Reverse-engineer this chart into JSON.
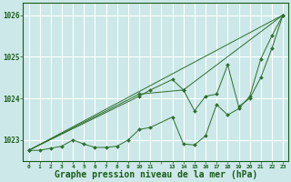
{
  "background_color": "#cce8e8",
  "grid_color": "#ffffff",
  "line_color": "#2d6e2d",
  "marker_color": "#2d6e2d",
  "xlabel": "Graphe pression niveau de la mer (hPa)",
  "xlabel_fontsize": 7,
  "ylim": [
    1022.5,
    1026.3
  ],
  "xlim": [
    -0.5,
    23.5
  ],
  "yticks": [
    1023,
    1024,
    1025,
    1026
  ],
  "xtick_labels": [
    "0",
    "1",
    "2",
    "3",
    "4",
    "5",
    "6",
    "7",
    "8",
    "9",
    "10",
    "11",
    "",
    "13",
    "14",
    "15",
    "16",
    "17",
    "18",
    "19",
    "20",
    "21",
    "22",
    "23"
  ],
  "xtick_positions": [
    0,
    1,
    2,
    3,
    4,
    5,
    6,
    7,
    8,
    9,
    10,
    11,
    12,
    13,
    14,
    15,
    16,
    17,
    18,
    19,
    20,
    21,
    22,
    23
  ],
  "series": [
    {
      "x": [
        0,
        1,
        2,
        3,
        4,
        5,
        6,
        7,
        8,
        9,
        10,
        11,
        13,
        14,
        15,
        16,
        17,
        18,
        19,
        20,
        21,
        22,
        23
      ],
      "y": [
        1022.75,
        1022.75,
        1022.8,
        1022.85,
        1023.0,
        1022.9,
        1022.82,
        1022.82,
        1022.85,
        1023.0,
        1023.25,
        1023.3,
        1023.55,
        1022.9,
        1022.88,
        1023.1,
        1023.85,
        1023.6,
        1023.75,
        1024.05,
        1024.95,
        1025.5,
        1026.0
      ]
    },
    {
      "x": [
        0,
        23
      ],
      "y": [
        1022.75,
        1026.0
      ]
    },
    {
      "x": [
        0,
        10,
        14,
        23
      ],
      "y": [
        1022.75,
        1024.1,
        1024.2,
        1026.0
      ]
    },
    {
      "x": [
        0,
        10,
        11,
        13,
        14,
        15,
        16,
        17,
        18,
        19,
        20,
        21,
        22,
        23
      ],
      "y": [
        1022.75,
        1024.05,
        1024.2,
        1024.45,
        1024.2,
        1023.7,
        1024.05,
        1024.1,
        1024.8,
        1023.8,
        1024.0,
        1024.5,
        1025.2,
        1026.0
      ]
    }
  ]
}
